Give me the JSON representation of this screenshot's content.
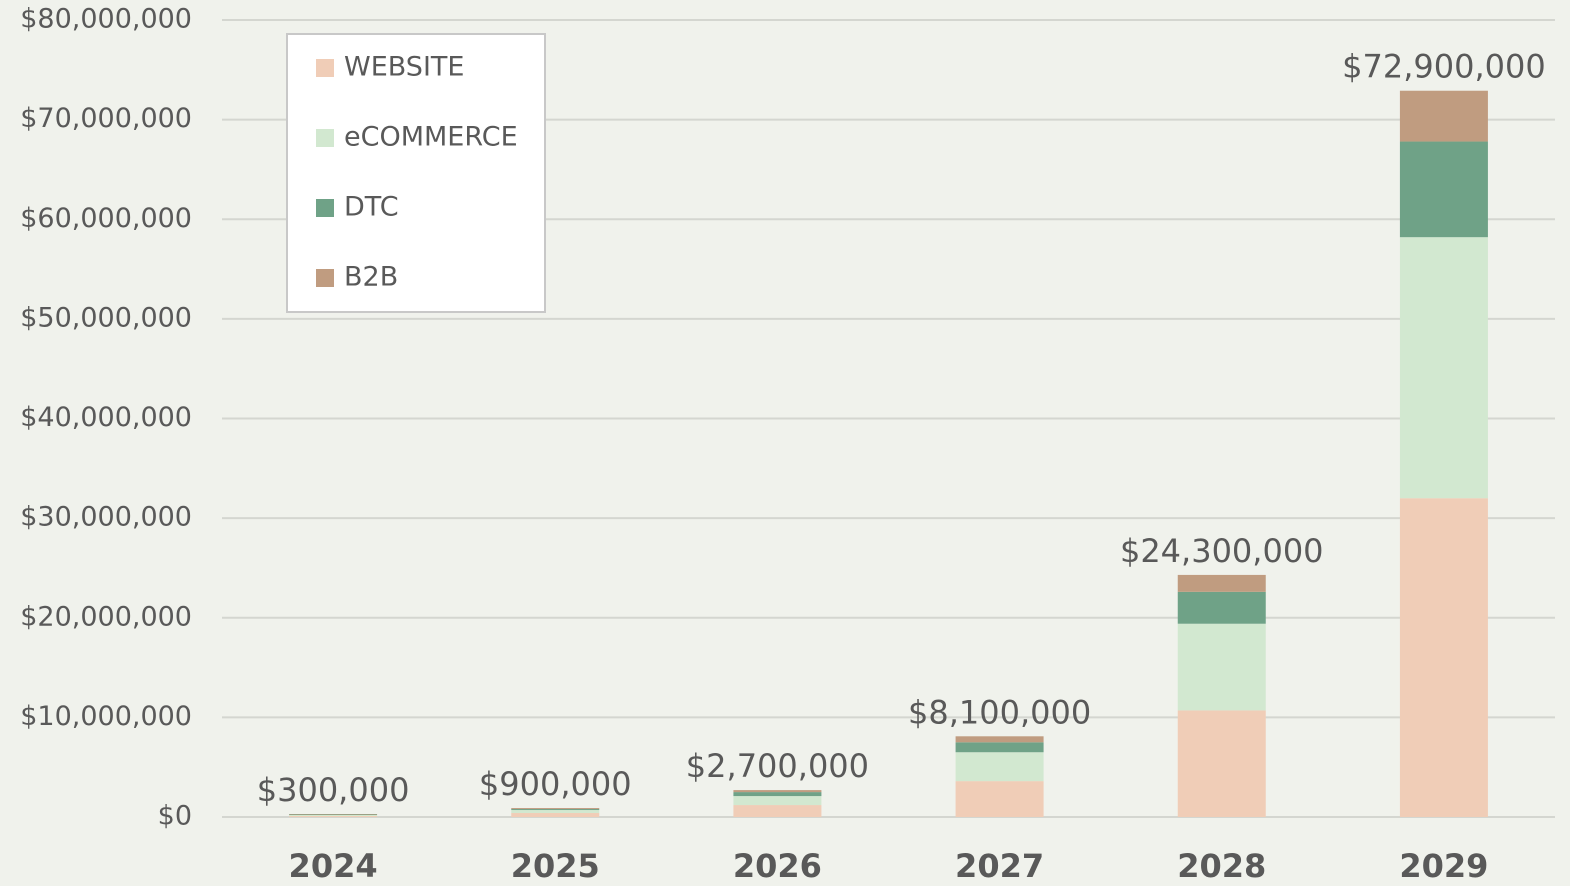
{
  "chart_data": {
    "type": "stacked_bar",
    "categories": [
      "2024",
      "2025",
      "2026",
      "2027",
      "2028",
      "2029"
    ],
    "series": [
      {
        "name": "WEBSITE",
        "color": "#f0cdb7",
        "values": [
          100000,
          400000,
          1200000,
          3600000,
          10700000,
          32000000
        ]
      },
      {
        "name": "eCOMMERCE",
        "color": "#d2e8d0",
        "values": [
          100000,
          300000,
          900000,
          2900000,
          8700000,
          26200000
        ]
      },
      {
        "name": "DTC",
        "color": "#6fa287",
        "values": [
          50000,
          100000,
          400000,
          1000000,
          3200000,
          9600000
        ]
      },
      {
        "name": "B2B",
        "color": "#c09c80",
        "values": [
          50000,
          100000,
          200000,
          600000,
          1700000,
          5100000
        ]
      }
    ],
    "totals": [
      300000,
      900000,
      2700000,
      8100000,
      24300000,
      72900000
    ],
    "value_labels": [
      "$300,000",
      "$900,000",
      "$2,700,000",
      "$8,100,000",
      "$24,300,000",
      "$72,900,000"
    ],
    "ylim": [
      0,
      80000000
    ],
    "yticks": [
      {
        "value": 0,
        "label": "$0"
      },
      {
        "value": 10000000,
        "label": "$10,000,000"
      },
      {
        "value": 20000000,
        "label": "$20,000,000"
      },
      {
        "value": 30000000,
        "label": "$30,000,000"
      },
      {
        "value": 40000000,
        "label": "$40,000,000"
      },
      {
        "value": 50000000,
        "label": "$50,000,000"
      },
      {
        "value": 60000000,
        "label": "$60,000,000"
      },
      {
        "value": 70000000,
        "label": "$70,000,000"
      },
      {
        "value": 80000000,
        "label": "$80,000,000"
      }
    ],
    "grid": true,
    "legend": "upper-left"
  }
}
